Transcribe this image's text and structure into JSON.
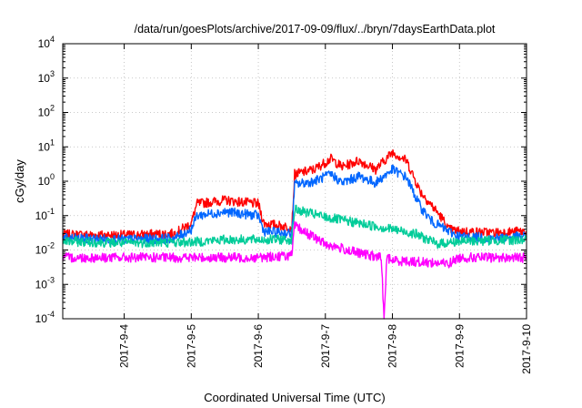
{
  "chart_data": {
    "type": "line",
    "title": "/data/run/goesPlots/archive/2017-09-09/flux/../bryn/7daysEarthData.plot",
    "xlabel": "Coordinated Universal Time (UTC)",
    "ylabel": "cGy/day",
    "y_scale": "log",
    "x_axis": "date",
    "xlim": [
      "2017-09-03T02:00",
      "2017-09-10T00:00"
    ],
    "ylim": [
      0.0001,
      10000
    ],
    "x_ticks": [
      "2017-9-4",
      "2017-9-5",
      "2017-9-6",
      "2017-9-7",
      "2017-9-8",
      "2017-9-9",
      "2017-9-10"
    ],
    "y_ticks": [
      {
        "base": "10",
        "exp": "-4",
        "value": 0.0001
      },
      {
        "base": "10",
        "exp": "-3",
        "value": 0.001
      },
      {
        "base": "10",
        "exp": "-2",
        "value": 0.01
      },
      {
        "base": "10",
        "exp": "-1",
        "value": 0.1
      },
      {
        "base": "10",
        "exp": "0",
        "value": 1
      },
      {
        "base": "10",
        "exp": "1",
        "value": 10
      },
      {
        "base": "10",
        "exp": "2",
        "value": 100
      },
      {
        "base": "10",
        "exp": "3",
        "value": 1000
      },
      {
        "base": "10",
        "exp": "4",
        "value": 10000
      }
    ],
    "grid": true,
    "legend": "none",
    "series": [
      {
        "color": "#ff0000",
        "points": [
          [
            "2017-09-03T02:00",
            0.028
          ],
          [
            "2017-09-04T00:00",
            0.027
          ],
          [
            "2017-09-04T18:00",
            0.03
          ],
          [
            "2017-09-05T00:00",
            0.06
          ],
          [
            "2017-09-05T02:00",
            0.22
          ],
          [
            "2017-09-05T12:00",
            0.28
          ],
          [
            "2017-09-06T00:00",
            0.22
          ],
          [
            "2017-09-06T02:00",
            0.06
          ],
          [
            "2017-09-06T12:00",
            0.045
          ],
          [
            "2017-09-06T13:00",
            1.6
          ],
          [
            "2017-09-06T20:00",
            2.2
          ],
          [
            "2017-09-07T02:00",
            4.5
          ],
          [
            "2017-09-07T06:00",
            2.6
          ],
          [
            "2017-09-07T12:00",
            4.0
          ],
          [
            "2017-09-07T18:00",
            2.2
          ],
          [
            "2017-09-08T00:00",
            7.0
          ],
          [
            "2017-09-08T05:00",
            4.0
          ],
          [
            "2017-09-08T10:00",
            0.5
          ],
          [
            "2017-09-08T14:00",
            0.2
          ],
          [
            "2017-09-08T18:00",
            0.08
          ],
          [
            "2017-09-08T20:00",
            0.04
          ],
          [
            "2017-09-09T00:00",
            0.035
          ],
          [
            "2017-09-09T12:00",
            0.032
          ],
          [
            "2017-09-10T00:00",
            0.035
          ]
        ]
      },
      {
        "color": "#0066ff",
        "points": [
          [
            "2017-09-03T02:00",
            0.022
          ],
          [
            "2017-09-04T00:00",
            0.02
          ],
          [
            "2017-09-04T18:00",
            0.022
          ],
          [
            "2017-09-05T00:00",
            0.04
          ],
          [
            "2017-09-05T02:00",
            0.1
          ],
          [
            "2017-09-05T12:00",
            0.13
          ],
          [
            "2017-09-06T00:00",
            0.1
          ],
          [
            "2017-09-06T02:00",
            0.035
          ],
          [
            "2017-09-06T12:00",
            0.03
          ],
          [
            "2017-09-06T13:00",
            0.8
          ],
          [
            "2017-09-06T20:00",
            1.0
          ],
          [
            "2017-09-07T02:00",
            1.6
          ],
          [
            "2017-09-07T06:00",
            0.9
          ],
          [
            "2017-09-07T12:00",
            1.4
          ],
          [
            "2017-09-07T18:00",
            0.9
          ],
          [
            "2017-09-08T00:00",
            2.2
          ],
          [
            "2017-09-08T05:00",
            1.3
          ],
          [
            "2017-09-08T10:00",
            0.18
          ],
          [
            "2017-09-08T14:00",
            0.07
          ],
          [
            "2017-09-08T20:00",
            0.035
          ],
          [
            "2017-09-09T00:00",
            0.025
          ],
          [
            "2017-09-09T12:00",
            0.022
          ],
          [
            "2017-09-10T00:00",
            0.025
          ]
        ]
      },
      {
        "color": "#00cc99",
        "points": [
          [
            "2017-09-03T02:00",
            0.018
          ],
          [
            "2017-09-04T00:00",
            0.016
          ],
          [
            "2017-09-05T00:00",
            0.017
          ],
          [
            "2017-09-05T12:00",
            0.02
          ],
          [
            "2017-09-06T12:00",
            0.02
          ],
          [
            "2017-09-06T13:00",
            0.15
          ],
          [
            "2017-09-07T00:00",
            0.09
          ],
          [
            "2017-09-07T12:00",
            0.06
          ],
          [
            "2017-09-08T00:00",
            0.04
          ],
          [
            "2017-09-08T08:00",
            0.03
          ],
          [
            "2017-09-08T16:00",
            0.015
          ],
          [
            "2017-09-09T00:00",
            0.018
          ],
          [
            "2017-09-10T00:00",
            0.02
          ]
        ]
      },
      {
        "color": "#ff00ff",
        "points": [
          [
            "2017-09-03T02:00",
            0.006
          ],
          [
            "2017-09-04T00:00",
            0.006
          ],
          [
            "2017-09-05T00:00",
            0.006
          ],
          [
            "2017-09-06T00:00",
            0.006
          ],
          [
            "2017-09-06T12:00",
            0.007
          ],
          [
            "2017-09-06T13:00",
            0.05
          ],
          [
            "2017-09-07T00:00",
            0.015
          ],
          [
            "2017-09-07T12:00",
            0.008
          ],
          [
            "2017-09-07T20:00",
            0.006
          ],
          [
            "2017-09-07T21:00",
            0.0001
          ],
          [
            "2017-09-07T22:00",
            0.006
          ],
          [
            "2017-09-08T00:00",
            0.005
          ],
          [
            "2017-09-08T20:00",
            0.004
          ],
          [
            "2017-09-09T00:00",
            0.006
          ],
          [
            "2017-09-10T00:00",
            0.006
          ]
        ]
      }
    ]
  }
}
